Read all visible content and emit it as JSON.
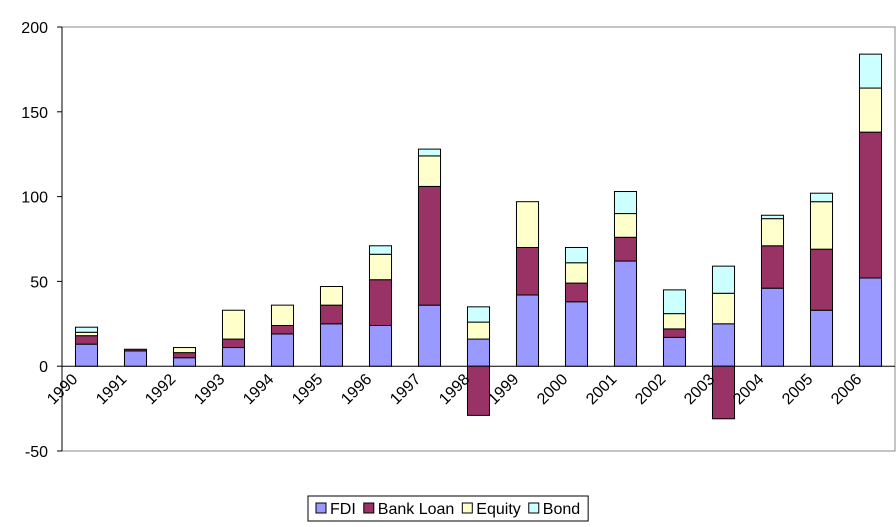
{
  "chart_data": {
    "type": "bar",
    "stacked": true,
    "categories": [
      "1990",
      "1991",
      "1992",
      "1993",
      "1994",
      "1995",
      "1996",
      "1997",
      "1998",
      "1999",
      "2000",
      "2001",
      "2002",
      "2003",
      "2004",
      "2005",
      "2006"
    ],
    "series": [
      {
        "name": "FDI",
        "color": "#9999ff",
        "values": [
          13,
          9,
          5,
          11,
          19,
          25,
          24,
          36,
          16,
          42,
          38,
          62,
          17,
          25,
          46,
          33,
          52
        ]
      },
      {
        "name": "Bank Loan",
        "color": "#993366",
        "values": [
          5,
          1,
          3,
          5,
          5,
          11,
          27,
          70,
          -29,
          28,
          11,
          14,
          5,
          -31,
          25,
          36,
          86
        ]
      },
      {
        "name": "Equity",
        "color": "#ffffcc",
        "values": [
          2,
          0,
          3,
          17,
          12,
          11,
          15,
          18,
          10,
          27,
          12,
          14,
          9,
          18,
          16,
          28,
          26
        ]
      },
      {
        "name": "Bond",
        "color": "#ccffff",
        "values": [
          3,
          0,
          0,
          0,
          0,
          0,
          5,
          4,
          9,
          0,
          9,
          13,
          14,
          16,
          2,
          5,
          20
        ]
      }
    ],
    "ylim": [
      -50,
      200
    ],
    "yticks": [
      -50,
      0,
      50,
      100,
      150,
      200
    ],
    "legend": "bottom"
  }
}
